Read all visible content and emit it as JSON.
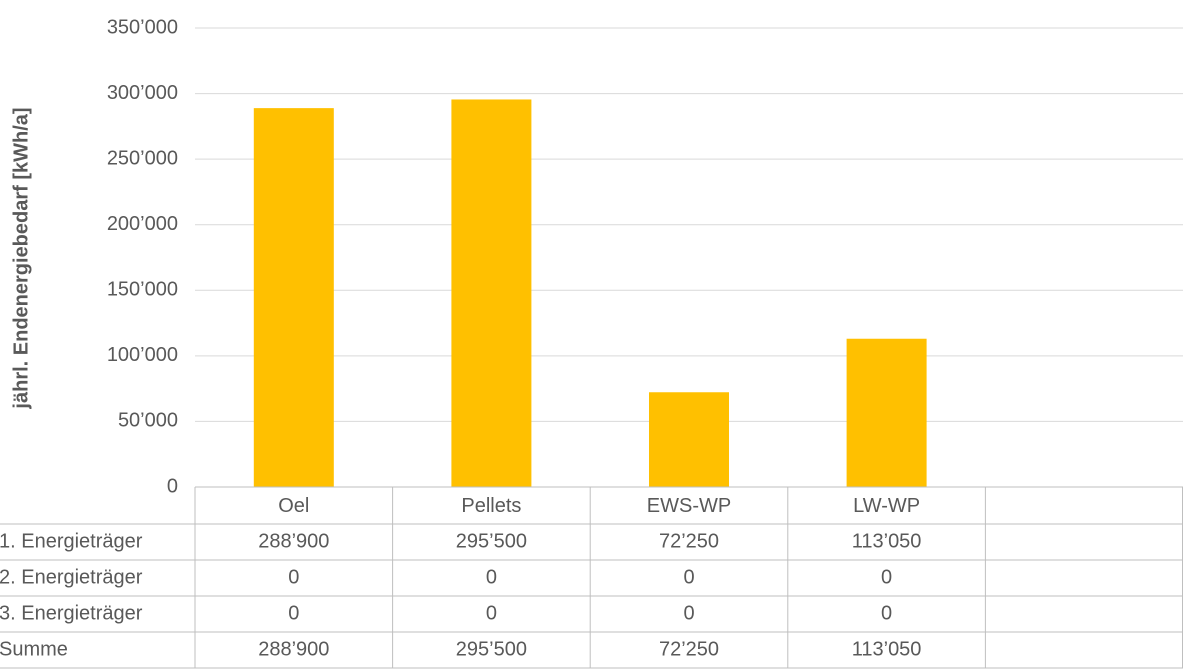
{
  "chart_data": {
    "type": "bar",
    "stacked": true,
    "y_label": "jährl. Endenergiebedarf [kWh/a]",
    "categories": [
      "Oel",
      "Pellets",
      "EWS-WP",
      "LW-WP",
      null
    ],
    "series": [
      {
        "name": "1. Energieträger",
        "color": "#ffc000",
        "values": [
          288900,
          295500,
          72250,
          113050,
          null
        ],
        "value_labels": [
          "288’900",
          "295’500",
          "72’250",
          "113’050",
          null
        ]
      },
      {
        "name": "2. Energieträger",
        "color": "#ed7d31",
        "values": [
          0,
          0,
          0,
          0,
          null
        ],
        "value_labels": [
          "0",
          "0",
          "0",
          "0",
          null
        ]
      },
      {
        "name": "3. Energieträger",
        "color": "#a5a5a5",
        "values": [
          0,
          0,
          0,
          0,
          null
        ],
        "value_labels": [
          "0",
          "0",
          "0",
          "0",
          null
        ]
      }
    ],
    "totals": {
      "name": "Summe",
      "values": [
        288900,
        295500,
        72250,
        113050,
        null
      ],
      "value_labels": [
        "288’900",
        "295’500",
        "72’250",
        "113’050",
        null
      ]
    },
    "ylim": [
      0,
      350000
    ],
    "yticks": [
      0,
      {
        "value": 50000,
        "label": "50’000"
      },
      {
        "value": 100000,
        "label": "100’000"
      },
      {
        "value": 150000,
        "label": "150’000"
      },
      {
        "value": 200000,
        "label": "200’000"
      },
      {
        "value": 250000,
        "label": "250’000"
      },
      {
        "value": 300000,
        "label": "300’000"
      },
      {
        "value": 350000,
        "label": "350’000"
      }
    ],
    "grid": true
  }
}
